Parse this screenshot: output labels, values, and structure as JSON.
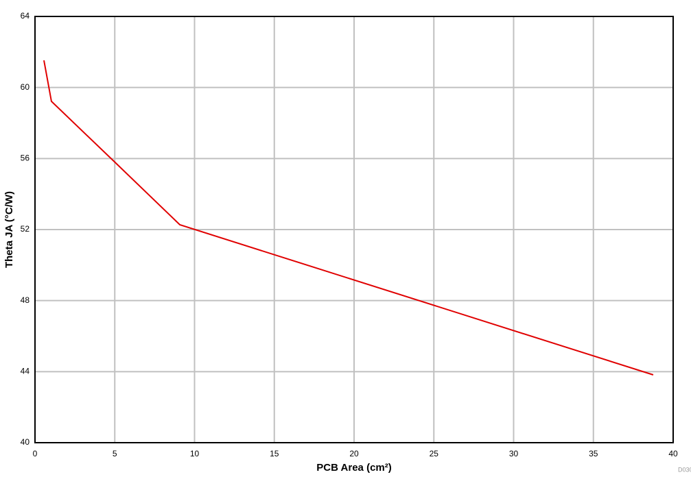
{
  "chart_data": {
    "type": "line",
    "x_label": "PCB Area (cm²)",
    "y_label": "Theta JA (°C/W)",
    "note": "D030",
    "grid": true,
    "xlim": [
      0,
      40
    ],
    "xticks": [
      0,
      5,
      10,
      15,
      20,
      25,
      30,
      35,
      40
    ],
    "ylim": [
      40,
      64
    ],
    "yticks": [
      40,
      44,
      48,
      52,
      56,
      60,
      64
    ],
    "series": [
      {
        "color": "#e00000",
        "x": [
          0.56,
          1.03,
          5,
          9.08,
          38.75
        ],
        "values": [
          61.53,
          59.22,
          55.8,
          52.27,
          43.82
        ]
      }
    ]
  }
}
